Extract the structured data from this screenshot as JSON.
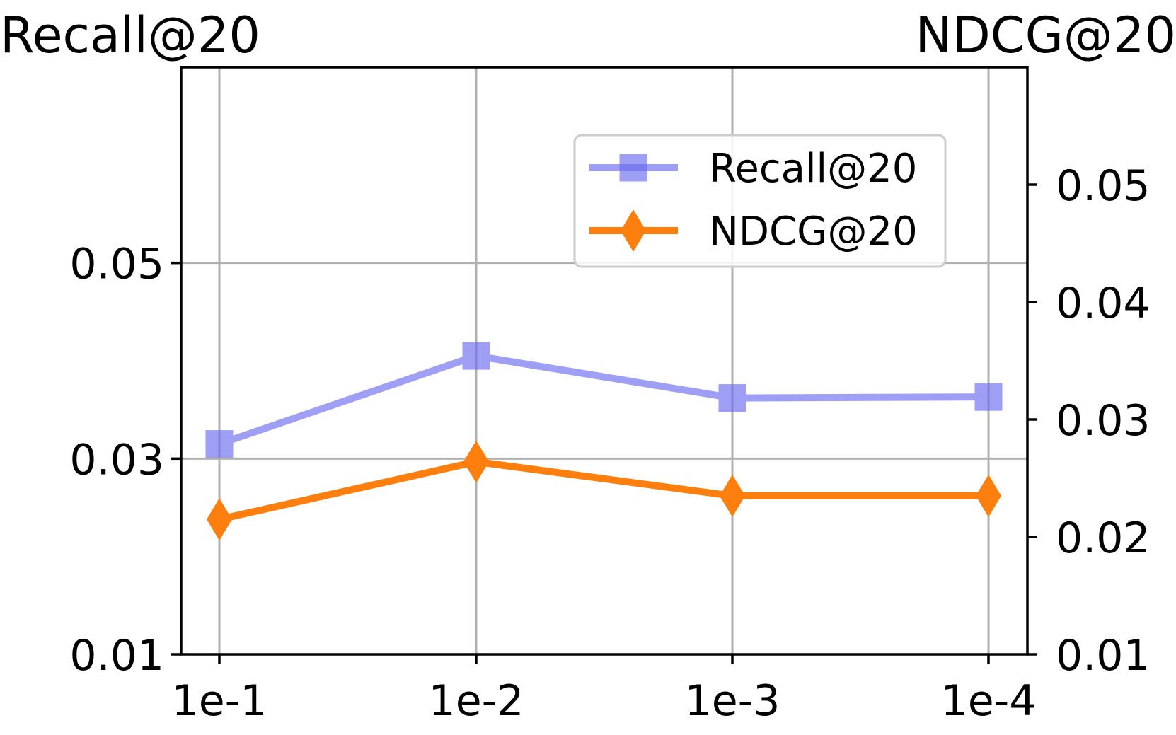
{
  "chart_data": {
    "type": "line",
    "x_categories": [
      "1e-1",
      "1e-2",
      "1e-3",
      "1e-4"
    ],
    "left_axis": {
      "title": "Recall@20",
      "ylim": [
        0.01,
        0.07
      ],
      "ticks": [
        0.01,
        0.03,
        0.05
      ],
      "tick_labels": [
        "0.01",
        "0.03",
        "0.05"
      ]
    },
    "right_axis": {
      "title": "NDCG@20",
      "ylim": [
        0.01,
        0.06
      ],
      "ticks": [
        0.01,
        0.02,
        0.03,
        0.04,
        0.05
      ],
      "tick_labels": [
        "0.01",
        "0.02",
        "0.03",
        "0.04",
        "0.05"
      ]
    },
    "series": [
      {
        "name": "Recall@20",
        "axis": "left",
        "marker": "square",
        "color": "#6b6bf0",
        "opacity": 0.65,
        "values": [
          0.0315,
          0.0405,
          0.0362,
          0.0363
        ]
      },
      {
        "name": "NDCG@20",
        "axis": "right",
        "marker": "diamond",
        "color": "#ff7f0e",
        "opacity": 1,
        "values": [
          0.0215,
          0.0264,
          0.0235,
          0.0235
        ]
      }
    ],
    "grid": true,
    "legend_position": "top-right"
  }
}
